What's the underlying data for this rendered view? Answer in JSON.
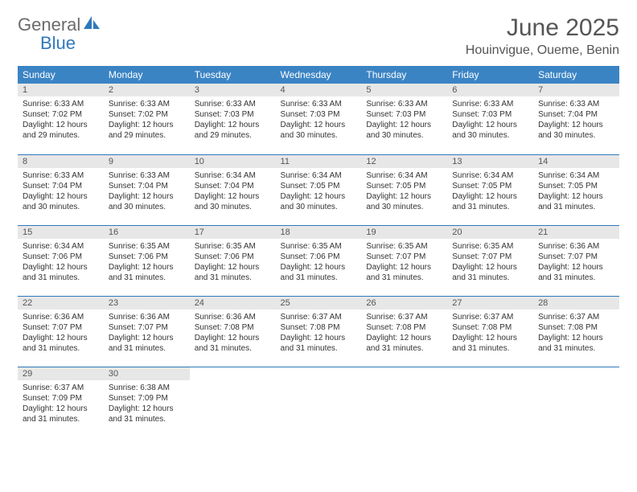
{
  "brand": {
    "word1": "General",
    "word2": "Blue"
  },
  "title": {
    "month": "June 2025",
    "location": "Houinvigue, Oueme, Benin"
  },
  "colors": {
    "header_bg": "#3b84c4",
    "rule": "#2f78bd",
    "daynum_bg": "#e7e7e7"
  },
  "weekdays": [
    "Sunday",
    "Monday",
    "Tuesday",
    "Wednesday",
    "Thursday",
    "Friday",
    "Saturday"
  ],
  "weeks": [
    [
      {
        "n": "1",
        "sr": "Sunrise: 6:33 AM",
        "ss": "Sunset: 7:02 PM",
        "d1": "Daylight: 12 hours",
        "d2": "and 29 minutes."
      },
      {
        "n": "2",
        "sr": "Sunrise: 6:33 AM",
        "ss": "Sunset: 7:02 PM",
        "d1": "Daylight: 12 hours",
        "d2": "and 29 minutes."
      },
      {
        "n": "3",
        "sr": "Sunrise: 6:33 AM",
        "ss": "Sunset: 7:03 PM",
        "d1": "Daylight: 12 hours",
        "d2": "and 29 minutes."
      },
      {
        "n": "4",
        "sr": "Sunrise: 6:33 AM",
        "ss": "Sunset: 7:03 PM",
        "d1": "Daylight: 12 hours",
        "d2": "and 30 minutes."
      },
      {
        "n": "5",
        "sr": "Sunrise: 6:33 AM",
        "ss": "Sunset: 7:03 PM",
        "d1": "Daylight: 12 hours",
        "d2": "and 30 minutes."
      },
      {
        "n": "6",
        "sr": "Sunrise: 6:33 AM",
        "ss": "Sunset: 7:03 PM",
        "d1": "Daylight: 12 hours",
        "d2": "and 30 minutes."
      },
      {
        "n": "7",
        "sr": "Sunrise: 6:33 AM",
        "ss": "Sunset: 7:04 PM",
        "d1": "Daylight: 12 hours",
        "d2": "and 30 minutes."
      }
    ],
    [
      {
        "n": "8",
        "sr": "Sunrise: 6:33 AM",
        "ss": "Sunset: 7:04 PM",
        "d1": "Daylight: 12 hours",
        "d2": "and 30 minutes."
      },
      {
        "n": "9",
        "sr": "Sunrise: 6:33 AM",
        "ss": "Sunset: 7:04 PM",
        "d1": "Daylight: 12 hours",
        "d2": "and 30 minutes."
      },
      {
        "n": "10",
        "sr": "Sunrise: 6:34 AM",
        "ss": "Sunset: 7:04 PM",
        "d1": "Daylight: 12 hours",
        "d2": "and 30 minutes."
      },
      {
        "n": "11",
        "sr": "Sunrise: 6:34 AM",
        "ss": "Sunset: 7:05 PM",
        "d1": "Daylight: 12 hours",
        "d2": "and 30 minutes."
      },
      {
        "n": "12",
        "sr": "Sunrise: 6:34 AM",
        "ss": "Sunset: 7:05 PM",
        "d1": "Daylight: 12 hours",
        "d2": "and 30 minutes."
      },
      {
        "n": "13",
        "sr": "Sunrise: 6:34 AM",
        "ss": "Sunset: 7:05 PM",
        "d1": "Daylight: 12 hours",
        "d2": "and 31 minutes."
      },
      {
        "n": "14",
        "sr": "Sunrise: 6:34 AM",
        "ss": "Sunset: 7:05 PM",
        "d1": "Daylight: 12 hours",
        "d2": "and 31 minutes."
      }
    ],
    [
      {
        "n": "15",
        "sr": "Sunrise: 6:34 AM",
        "ss": "Sunset: 7:06 PM",
        "d1": "Daylight: 12 hours",
        "d2": "and 31 minutes."
      },
      {
        "n": "16",
        "sr": "Sunrise: 6:35 AM",
        "ss": "Sunset: 7:06 PM",
        "d1": "Daylight: 12 hours",
        "d2": "and 31 minutes."
      },
      {
        "n": "17",
        "sr": "Sunrise: 6:35 AM",
        "ss": "Sunset: 7:06 PM",
        "d1": "Daylight: 12 hours",
        "d2": "and 31 minutes."
      },
      {
        "n": "18",
        "sr": "Sunrise: 6:35 AM",
        "ss": "Sunset: 7:06 PM",
        "d1": "Daylight: 12 hours",
        "d2": "and 31 minutes."
      },
      {
        "n": "19",
        "sr": "Sunrise: 6:35 AM",
        "ss": "Sunset: 7:07 PM",
        "d1": "Daylight: 12 hours",
        "d2": "and 31 minutes."
      },
      {
        "n": "20",
        "sr": "Sunrise: 6:35 AM",
        "ss": "Sunset: 7:07 PM",
        "d1": "Daylight: 12 hours",
        "d2": "and 31 minutes."
      },
      {
        "n": "21",
        "sr": "Sunrise: 6:36 AM",
        "ss": "Sunset: 7:07 PM",
        "d1": "Daylight: 12 hours",
        "d2": "and 31 minutes."
      }
    ],
    [
      {
        "n": "22",
        "sr": "Sunrise: 6:36 AM",
        "ss": "Sunset: 7:07 PM",
        "d1": "Daylight: 12 hours",
        "d2": "and 31 minutes."
      },
      {
        "n": "23",
        "sr": "Sunrise: 6:36 AM",
        "ss": "Sunset: 7:07 PM",
        "d1": "Daylight: 12 hours",
        "d2": "and 31 minutes."
      },
      {
        "n": "24",
        "sr": "Sunrise: 6:36 AM",
        "ss": "Sunset: 7:08 PM",
        "d1": "Daylight: 12 hours",
        "d2": "and 31 minutes."
      },
      {
        "n": "25",
        "sr": "Sunrise: 6:37 AM",
        "ss": "Sunset: 7:08 PM",
        "d1": "Daylight: 12 hours",
        "d2": "and 31 minutes."
      },
      {
        "n": "26",
        "sr": "Sunrise: 6:37 AM",
        "ss": "Sunset: 7:08 PM",
        "d1": "Daylight: 12 hours",
        "d2": "and 31 minutes."
      },
      {
        "n": "27",
        "sr": "Sunrise: 6:37 AM",
        "ss": "Sunset: 7:08 PM",
        "d1": "Daylight: 12 hours",
        "d2": "and 31 minutes."
      },
      {
        "n": "28",
        "sr": "Sunrise: 6:37 AM",
        "ss": "Sunset: 7:08 PM",
        "d1": "Daylight: 12 hours",
        "d2": "and 31 minutes."
      }
    ],
    [
      {
        "n": "29",
        "sr": "Sunrise: 6:37 AM",
        "ss": "Sunset: 7:09 PM",
        "d1": "Daylight: 12 hours",
        "d2": "and 31 minutes."
      },
      {
        "n": "30",
        "sr": "Sunrise: 6:38 AM",
        "ss": "Sunset: 7:09 PM",
        "d1": "Daylight: 12 hours",
        "d2": "and 31 minutes."
      },
      null,
      null,
      null,
      null,
      null
    ]
  ]
}
